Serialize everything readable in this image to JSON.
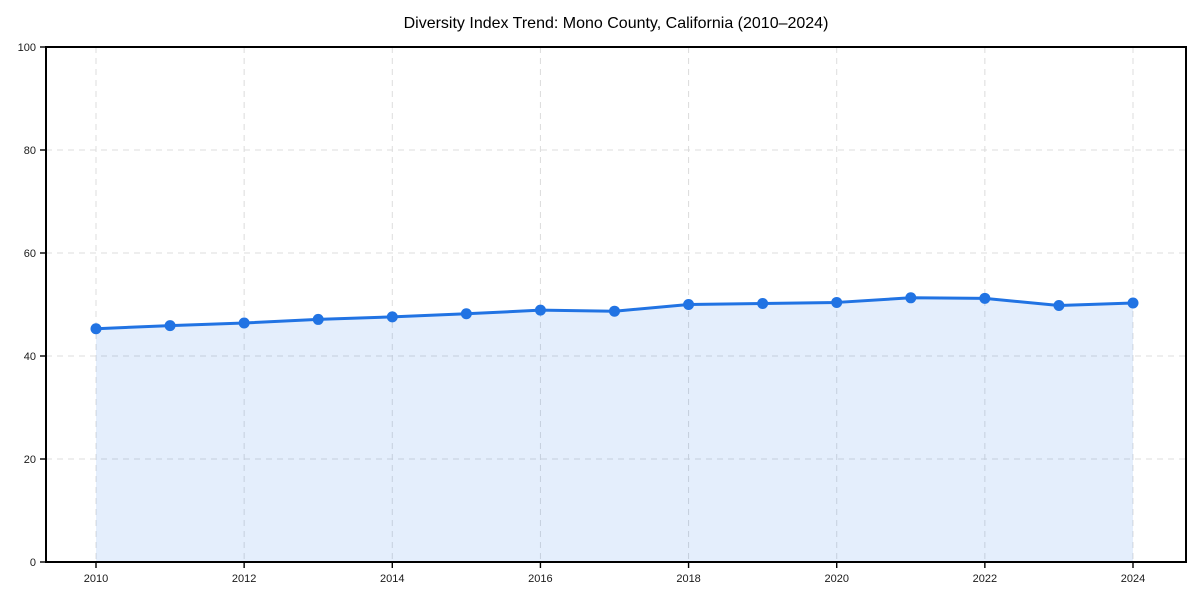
{
  "chart_data": {
    "type": "area",
    "title": "Diversity Index Trend: Mono County, California (2010–2024)",
    "series_name": "Diversity Index",
    "x": [
      2010,
      2011,
      2012,
      2013,
      2014,
      2015,
      2016,
      2017,
      2018,
      2019,
      2020,
      2021,
      2022,
      2023,
      2024
    ],
    "values": [
      45.3,
      45.9,
      46.4,
      47.1,
      47.6,
      48.2,
      48.9,
      48.7,
      50.0,
      50.2,
      50.4,
      51.3,
      51.2,
      49.8,
      50.3
    ],
    "xlabel": "",
    "ylabel": "",
    "xlim": [
      2010,
      2024
    ],
    "ylim": [
      0,
      100
    ],
    "xticks": [
      2010,
      2012,
      2014,
      2016,
      2018,
      2020,
      2022,
      2024
    ],
    "yticks": [
      0,
      20,
      40,
      60,
      80,
      100
    ],
    "grid": true,
    "legend": "none",
    "colors": {
      "line": "#2173e3",
      "marker": "#2173e3",
      "fill": "#2173e3",
      "fill_opacity": 0.12,
      "grid": "#dcdcdc",
      "spine": "#000000",
      "tick": "#000000",
      "tick_label": "#1a1a1a",
      "title": "#000000",
      "background": "#ffffff"
    }
  }
}
